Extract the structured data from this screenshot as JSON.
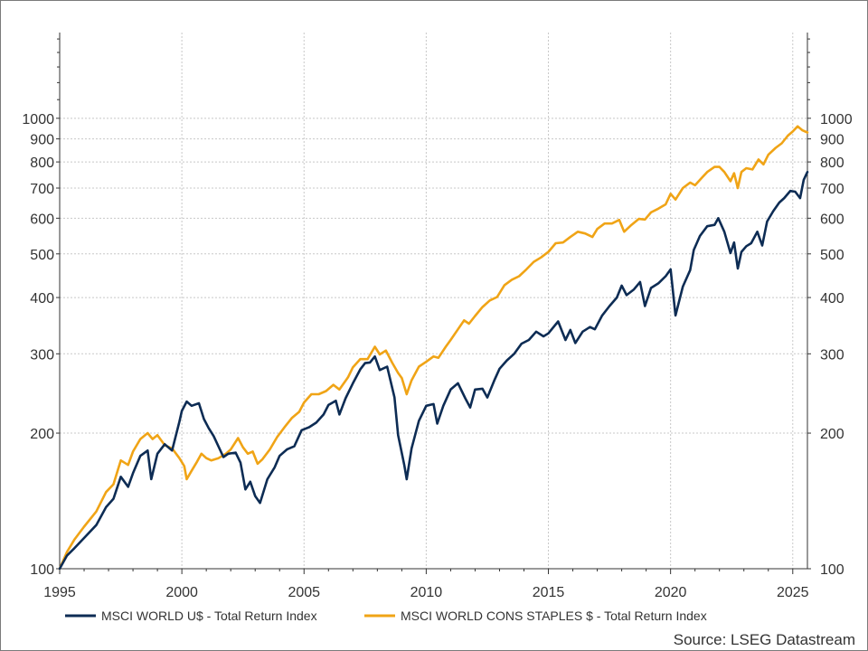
{
  "chart_data": {
    "type": "line",
    "title": "",
    "xlabel": "",
    "ylabel": "",
    "yscale": "log",
    "xlim": [
      1995,
      2025.6
    ],
    "ylim": [
      100,
      1550
    ],
    "x_ticks": [
      "1995",
      "2000",
      "2005",
      "2010",
      "2015",
      "2020",
      "2025"
    ],
    "y_ticks": [
      100,
      200,
      300,
      400,
      500,
      600,
      700,
      800,
      900,
      1000
    ],
    "grid": true,
    "legend_position": "bottom",
    "source": "Source: LSEG Datastream",
    "series": [
      {
        "name": "MSCI WORLD U$ - Total Return Index",
        "color": "#0d2c54",
        "points": [
          [
            1995.0,
            100
          ],
          [
            1995.3,
            107
          ],
          [
            1995.6,
            111
          ],
          [
            1996.0,
            117
          ],
          [
            1996.5,
            125
          ],
          [
            1996.9,
            137
          ],
          [
            1997.2,
            143
          ],
          [
            1997.5,
            160
          ],
          [
            1997.8,
            152
          ],
          [
            1998.0,
            163
          ],
          [
            1998.3,
            178
          ],
          [
            1998.6,
            183
          ],
          [
            1998.75,
            158
          ],
          [
            1999.0,
            180
          ],
          [
            1999.3,
            189
          ],
          [
            1999.6,
            183
          ],
          [
            1999.9,
            212
          ],
          [
            2000.0,
            224
          ],
          [
            2000.2,
            235
          ],
          [
            2000.4,
            230
          ],
          [
            2000.7,
            233
          ],
          [
            2000.9,
            215
          ],
          [
            2001.1,
            205
          ],
          [
            2001.3,
            197
          ],
          [
            2001.7,
            177
          ],
          [
            2001.9,
            180
          ],
          [
            2002.2,
            181
          ],
          [
            2002.4,
            172
          ],
          [
            2002.6,
            150
          ],
          [
            2002.8,
            156
          ],
          [
            2003.0,
            145
          ],
          [
            2003.2,
            140
          ],
          [
            2003.5,
            158
          ],
          [
            2003.8,
            168
          ],
          [
            2004.0,
            178
          ],
          [
            2004.3,
            184
          ],
          [
            2004.6,
            187
          ],
          [
            2004.9,
            203
          ],
          [
            2005.2,
            206
          ],
          [
            2005.5,
            211
          ],
          [
            2005.8,
            220
          ],
          [
            2006.0,
            231
          ],
          [
            2006.3,
            236
          ],
          [
            2006.45,
            220
          ],
          [
            2006.7,
            239
          ],
          [
            2007.0,
            258
          ],
          [
            2007.3,
            277
          ],
          [
            2007.5,
            286
          ],
          [
            2007.7,
            287
          ],
          [
            2007.9,
            296
          ],
          [
            2008.1,
            276
          ],
          [
            2008.4,
            281
          ],
          [
            2008.7,
            240
          ],
          [
            2008.85,
            198
          ],
          [
            2009.1,
            170
          ],
          [
            2009.2,
            158
          ],
          [
            2009.4,
            185
          ],
          [
            2009.7,
            213
          ],
          [
            2010.0,
            230
          ],
          [
            2010.3,
            232
          ],
          [
            2010.45,
            210
          ],
          [
            2010.7,
            230
          ],
          [
            2011.0,
            250
          ],
          [
            2011.3,
            258
          ],
          [
            2011.6,
            239
          ],
          [
            2011.8,
            228
          ],
          [
            2012.0,
            250
          ],
          [
            2012.3,
            251
          ],
          [
            2012.5,
            240
          ],
          [
            2012.8,
            263
          ],
          [
            2013.0,
            278
          ],
          [
            2013.3,
            290
          ],
          [
            2013.6,
            300
          ],
          [
            2013.9,
            316
          ],
          [
            2014.2,
            322
          ],
          [
            2014.5,
            336
          ],
          [
            2014.8,
            328
          ],
          [
            2015.0,
            333
          ],
          [
            2015.4,
            354
          ],
          [
            2015.7,
            322
          ],
          [
            2015.9,
            339
          ],
          [
            2016.1,
            317
          ],
          [
            2016.4,
            336
          ],
          [
            2016.7,
            344
          ],
          [
            2016.9,
            340
          ],
          [
            2017.2,
            365
          ],
          [
            2017.5,
            383
          ],
          [
            2017.8,
            400
          ],
          [
            2018.0,
            425
          ],
          [
            2018.2,
            405
          ],
          [
            2018.5,
            417
          ],
          [
            2018.75,
            433
          ],
          [
            2018.95,
            383
          ],
          [
            2019.2,
            420
          ],
          [
            2019.5,
            430
          ],
          [
            2019.8,
            446
          ],
          [
            2020.0,
            462
          ],
          [
            2020.2,
            365
          ],
          [
            2020.5,
            423
          ],
          [
            2020.8,
            460
          ],
          [
            2020.95,
            510
          ],
          [
            2021.2,
            548
          ],
          [
            2021.5,
            576
          ],
          [
            2021.8,
            580
          ],
          [
            2021.95,
            600
          ],
          [
            2022.2,
            560
          ],
          [
            2022.45,
            502
          ],
          [
            2022.6,
            530
          ],
          [
            2022.75,
            464
          ],
          [
            2022.9,
            505
          ],
          [
            2023.1,
            520
          ],
          [
            2023.3,
            528
          ],
          [
            2023.55,
            560
          ],
          [
            2023.75,
            522
          ],
          [
            2023.95,
            590
          ],
          [
            2024.2,
            622
          ],
          [
            2024.45,
            650
          ],
          [
            2024.65,
            665
          ],
          [
            2024.9,
            690
          ],
          [
            2025.1,
            687
          ],
          [
            2025.3,
            665
          ],
          [
            2025.45,
            730
          ],
          [
            2025.6,
            760
          ]
        ]
      },
      {
        "name": "MSCI WORLD CONS STAPLES $ - Total Return Index",
        "color": "#f0a416",
        "points": [
          [
            1995.0,
            100
          ],
          [
            1995.3,
            109
          ],
          [
            1995.6,
            116
          ],
          [
            1996.0,
            124
          ],
          [
            1996.5,
            134
          ],
          [
            1996.9,
            148
          ],
          [
            1997.2,
            154
          ],
          [
            1997.5,
            174
          ],
          [
            1997.8,
            170
          ],
          [
            1998.0,
            182
          ],
          [
            1998.3,
            194
          ],
          [
            1998.6,
            200
          ],
          [
            1998.8,
            194
          ],
          [
            1999.0,
            198
          ],
          [
            1999.3,
            188
          ],
          [
            1999.6,
            185
          ],
          [
            1999.9,
            176
          ],
          [
            2000.1,
            169
          ],
          [
            2000.2,
            158
          ],
          [
            2000.4,
            165
          ],
          [
            2000.6,
            172
          ],
          [
            2000.8,
            180
          ],
          [
            2001.0,
            176
          ],
          [
            2001.2,
            174
          ],
          [
            2001.5,
            176
          ],
          [
            2001.8,
            180
          ],
          [
            2002.0,
            184
          ],
          [
            2002.3,
            195
          ],
          [
            2002.5,
            186
          ],
          [
            2002.7,
            180
          ],
          [
            2002.9,
            182
          ],
          [
            2003.1,
            171
          ],
          [
            2003.3,
            175
          ],
          [
            2003.6,
            184
          ],
          [
            2003.9,
            196
          ],
          [
            2004.2,
            206
          ],
          [
            2004.5,
            216
          ],
          [
            2004.8,
            223
          ],
          [
            2005.0,
            234
          ],
          [
            2005.3,
            244
          ],
          [
            2005.6,
            244
          ],
          [
            2005.9,
            248
          ],
          [
            2006.2,
            256
          ],
          [
            2006.45,
            250
          ],
          [
            2006.8,
            266
          ],
          [
            2007.0,
            280
          ],
          [
            2007.3,
            292
          ],
          [
            2007.6,
            292
          ],
          [
            2007.9,
            311
          ],
          [
            2008.1,
            299
          ],
          [
            2008.35,
            305
          ],
          [
            2008.6,
            287
          ],
          [
            2008.85,
            272
          ],
          [
            2009.0,
            265
          ],
          [
            2009.2,
            244
          ],
          [
            2009.4,
            262
          ],
          [
            2009.7,
            281
          ],
          [
            2010.0,
            288
          ],
          [
            2010.3,
            296
          ],
          [
            2010.5,
            294
          ],
          [
            2010.8,
            311
          ],
          [
            2011.0,
            322
          ],
          [
            2011.3,
            340
          ],
          [
            2011.55,
            356
          ],
          [
            2011.75,
            350
          ],
          [
            2012.0,
            364
          ],
          [
            2012.3,
            381
          ],
          [
            2012.6,
            394
          ],
          [
            2012.9,
            401
          ],
          [
            2013.2,
            426
          ],
          [
            2013.5,
            438
          ],
          [
            2013.8,
            446
          ],
          [
            2014.1,
            462
          ],
          [
            2014.4,
            480
          ],
          [
            2014.7,
            491
          ],
          [
            2015.0,
            505
          ],
          [
            2015.3,
            528
          ],
          [
            2015.6,
            530
          ],
          [
            2015.9,
            545
          ],
          [
            2016.2,
            560
          ],
          [
            2016.5,
            555
          ],
          [
            2016.8,
            545
          ],
          [
            2017.0,
            568
          ],
          [
            2017.3,
            584
          ],
          [
            2017.6,
            584
          ],
          [
            2017.9,
            595
          ],
          [
            2018.1,
            560
          ],
          [
            2018.4,
            580
          ],
          [
            2018.7,
            598
          ],
          [
            2018.95,
            596
          ],
          [
            2019.2,
            618
          ],
          [
            2019.5,
            630
          ],
          [
            2019.8,
            644
          ],
          [
            2020.0,
            680
          ],
          [
            2020.2,
            660
          ],
          [
            2020.5,
            700
          ],
          [
            2020.8,
            720
          ],
          [
            2021.0,
            710
          ],
          [
            2021.3,
            740
          ],
          [
            2021.5,
            760
          ],
          [
            2021.8,
            780
          ],
          [
            2022.0,
            780
          ],
          [
            2022.2,
            760
          ],
          [
            2022.45,
            725
          ],
          [
            2022.6,
            755
          ],
          [
            2022.75,
            700
          ],
          [
            2022.9,
            760
          ],
          [
            2023.1,
            775
          ],
          [
            2023.35,
            770
          ],
          [
            2023.6,
            810
          ],
          [
            2023.8,
            790
          ],
          [
            2024.0,
            830
          ],
          [
            2024.3,
            860
          ],
          [
            2024.55,
            880
          ],
          [
            2024.8,
            915
          ],
          [
            2025.0,
            935
          ],
          [
            2025.2,
            960
          ],
          [
            2025.4,
            940
          ],
          [
            2025.6,
            930
          ]
        ]
      }
    ]
  }
}
